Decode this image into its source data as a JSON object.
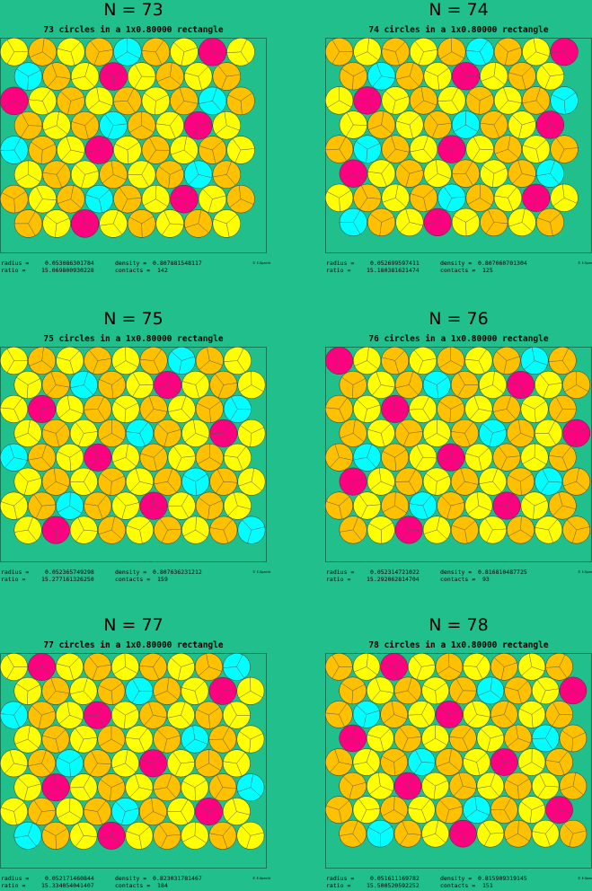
{
  "labels": {
    "radius": "radius =",
    "density": "density =",
    "ratio": "ratio =",
    "contacts": "contacts =",
    "credit": "© E.Specht"
  },
  "panels": [
    {
      "title": "N = 73",
      "subtitle": "73 circles in a 1x0.80000 rectangle",
      "count": 73,
      "radius": "0.053086301784",
      "density": "0.807881548117",
      "ratio": "15.069800930228",
      "contacts": "142"
    },
    {
      "title": "N = 74",
      "subtitle": "74 circles in a 1x0.80000 rectangle",
      "count": 74,
      "radius": "0.052699597411",
      "density": "0.807060701304",
      "ratio": "15.180381621474",
      "contacts": "125"
    },
    {
      "title": "N = 75",
      "subtitle": "75 circles in a 1x0.80000 rectangle",
      "count": 75,
      "radius": "0.052365749298",
      "density": "0.807636231212",
      "ratio": "15.277161326250",
      "contacts": "159"
    },
    {
      "title": "N = 76",
      "subtitle": "76 circles in a 1x0.80000 rectangle",
      "count": 76,
      "radius": "0.052314721022",
      "density": "0.816810487725",
      "ratio": "15.292062814704",
      "contacts": "93"
    },
    {
      "title": "N = 77",
      "subtitle": "77 circles in a 1x0.80000 rectangle",
      "count": 77,
      "radius": "0.052171460844",
      "density": "0.823031781467",
      "ratio": "15.334054041407",
      "contacts": "184"
    },
    {
      "title": "N = 78",
      "subtitle": "78 circles in a 1x0.80000 rectangle",
      "count": 78,
      "radius": "0.051611169782",
      "density": "0.815909319145",
      "ratio": "15.500520592252",
      "contacts": "151"
    }
  ]
}
